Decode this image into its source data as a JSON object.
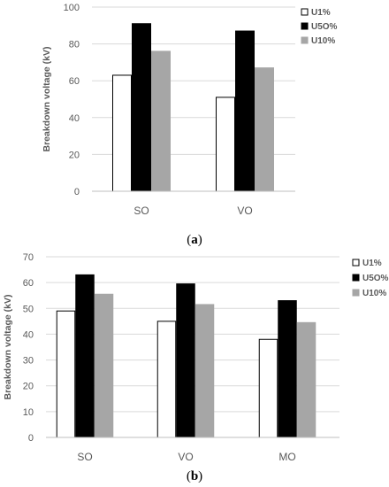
{
  "chart_data": [
    {
      "type": "bar",
      "panel_caption": {
        "open": "(",
        "letter": "a",
        "close": ")"
      },
      "ylabel": "Breakdown voltage (kV)",
      "xlabel": "",
      "ylim": [
        0,
        100
      ],
      "yticks": [
        0,
        20,
        40,
        60,
        80,
        100
      ],
      "grid": "horizontal",
      "legend_position": "right",
      "categories": [
        "SO",
        "VO"
      ],
      "series": [
        {
          "name": "U1%",
          "fill": "#ffffff",
          "stroke": "#000000",
          "values": [
            63,
            51
          ]
        },
        {
          "name": "U5O%",
          "fill": "#000000",
          "stroke": "#000000",
          "values": [
            91,
            87
          ]
        },
        {
          "name": "U10%",
          "fill": "#a6a6a6",
          "stroke": "#a6a6a6",
          "values": [
            76,
            67
          ]
        }
      ]
    },
    {
      "type": "bar",
      "panel_caption": {
        "open": "(",
        "letter": "b",
        "close": ")"
      },
      "ylabel": "Breakdown voltage (kV)",
      "xlabel": "",
      "ylim": [
        0,
        70
      ],
      "yticks": [
        0,
        10,
        20,
        30,
        40,
        50,
        60,
        70
      ],
      "grid": "horizontal",
      "legend_position": "right",
      "categories": [
        "SO",
        "VO",
        "MO"
      ],
      "series": [
        {
          "name": "U1%",
          "fill": "#ffffff",
          "stroke": "#000000",
          "values": [
            49,
            45,
            38
          ]
        },
        {
          "name": "U5O%",
          "fill": "#000000",
          "stroke": "#000000",
          "values": [
            63,
            59.5,
            53
          ]
        },
        {
          "name": "U10%",
          "fill": "#a6a6a6",
          "stroke": "#a6a6a6",
          "values": [
            55.5,
            51.5,
            44.5
          ]
        }
      ]
    }
  ]
}
